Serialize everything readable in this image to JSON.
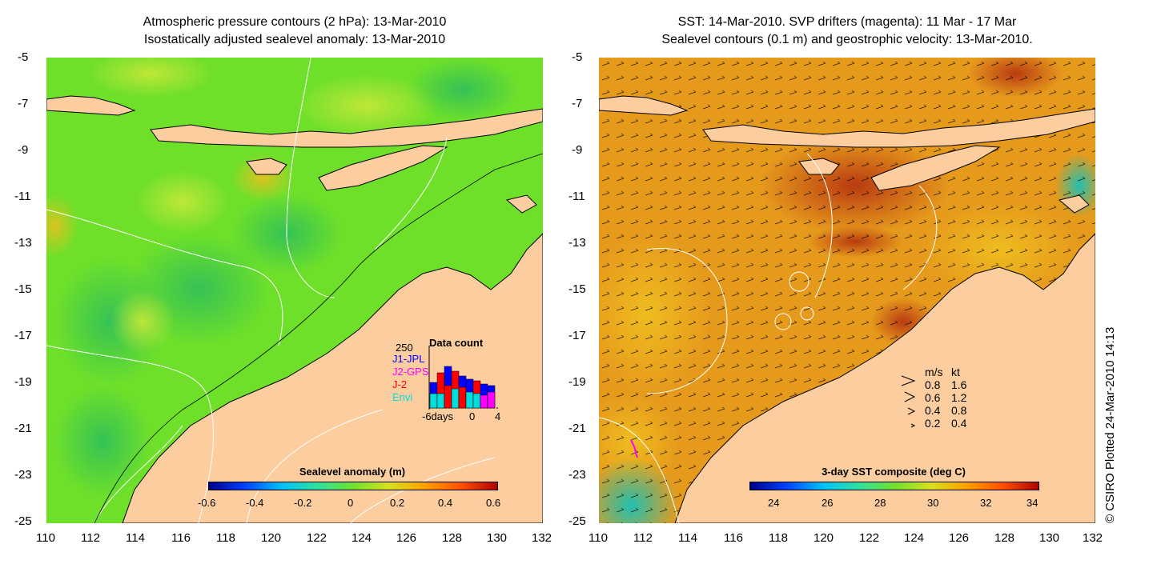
{
  "left_panel": {
    "title_line1": "Atmospheric pressure contours (2 hPa): 13-Mar-2010",
    "title_line2": "Isostatically adjusted sealevel anomaly: 13-Mar-2010",
    "x_ticks": [
      "110",
      "112",
      "114",
      "116",
      "118",
      "120",
      "122",
      "124",
      "126",
      "128",
      "130",
      "132"
    ],
    "y_ticks": [
      "-5",
      "-7",
      "-9",
      "-11",
      "-13",
      "-15",
      "-17",
      "-19",
      "-21",
      "-23",
      "-25"
    ],
    "colorbar": {
      "label": "Sealevel anomaly (m)",
      "ticks": [
        "-0.6",
        "-0.4",
        "-0.2",
        "0",
        "0.2",
        "0.4",
        "0.6"
      ]
    },
    "data_count": {
      "title": "Data count",
      "max_label": "250",
      "x_label_start": "-6days",
      "x_label_mid": "0",
      "x_label_end": "4",
      "legend": [
        {
          "name": "J1-JPL",
          "color": "#0000ff"
        },
        {
          "name": "J2-GPS",
          "color": "#ff00ff"
        },
        {
          "name": "J-2",
          "color": "#ff0000"
        },
        {
          "name": "Envi",
          "color": "#00dddd"
        }
      ]
    }
  },
  "right_panel": {
    "title_line1": "SST: 14-Mar-2010. SVP drifters (magenta): 11 Mar - 17 Mar",
    "title_line2": "Sealevel contours (0.1 m) and geostrophic velocity: 13-Mar-2010.",
    "x_ticks": [
      "110",
      "112",
      "114",
      "116",
      "118",
      "120",
      "122",
      "124",
      "126",
      "128",
      "130",
      "132"
    ],
    "y_ticks": [
      "-5",
      "-7",
      "-9",
      "-11",
      "-13",
      "-15",
      "-17",
      "-19",
      "-21",
      "-23",
      "-25"
    ],
    "colorbar": {
      "label": "3-day SST composite (deg C)",
      "ticks": [
        "24",
        "26",
        "28",
        "30",
        "32",
        "34"
      ]
    },
    "velocity_legend": {
      "header_ms": "m/s",
      "header_kt": "kt",
      "rows": [
        {
          "ms": "0.8",
          "kt": "1.6"
        },
        {
          "ms": "0.6",
          "kt": "1.2"
        },
        {
          "ms": "0.4",
          "kt": "0.8"
        },
        {
          "ms": "0.2",
          "kt": "0.4"
        }
      ]
    }
  },
  "credit": "© CSIRO Plotted 24-Mar-2010 14:13",
  "colors": {
    "land": "#fbcd9f",
    "sea_left": "#6ee02a",
    "sea_right": "#e69a1c"
  }
}
